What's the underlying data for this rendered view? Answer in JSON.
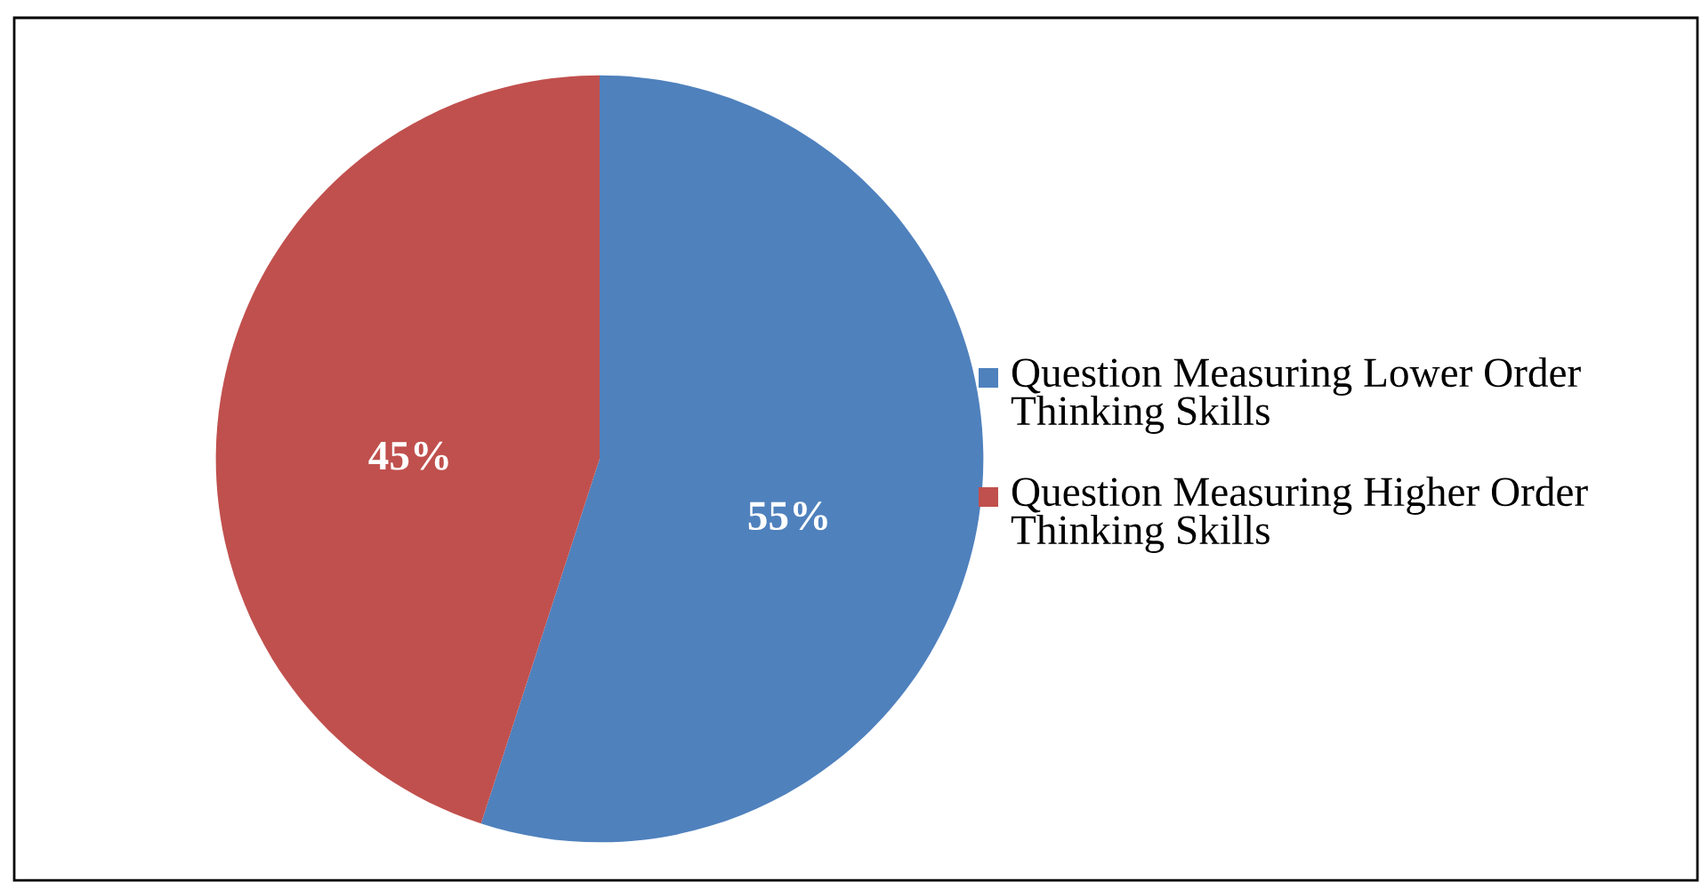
{
  "chart_data": {
    "type": "pie",
    "categories": [
      "Question Measuring Lower Order Thinking Skills",
      "Question Measuring Higher Order Thinking Skills"
    ],
    "values": [
      55,
      45
    ],
    "colors": [
      "#4f81bd",
      "#c0504d"
    ],
    "value_labels": [
      "55%",
      "45%"
    ],
    "legend": "right"
  }
}
